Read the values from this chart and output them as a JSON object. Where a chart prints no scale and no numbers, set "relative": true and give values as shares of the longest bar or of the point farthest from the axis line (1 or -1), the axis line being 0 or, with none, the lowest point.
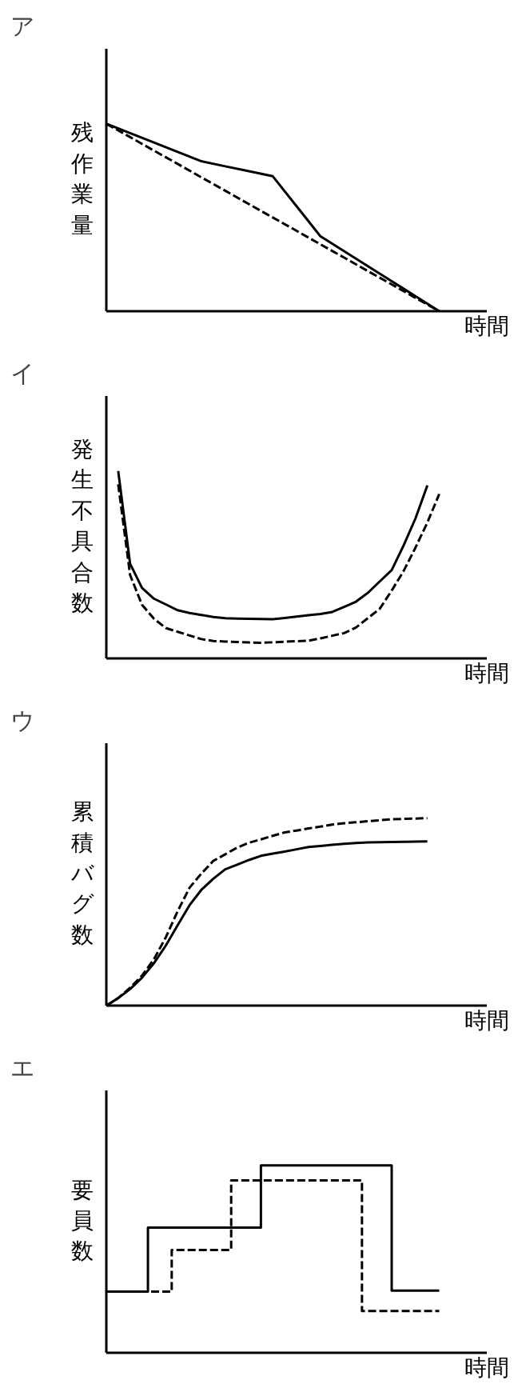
{
  "chart_data": [
    {
      "type": "line",
      "title": "ア",
      "ylabel": "残作業量",
      "xlabel": "時間",
      "relative": true,
      "categories": [
        null,
        null,
        null,
        null,
        null,
        null,
        null,
        null,
        null,
        null,
        null,
        null,
        null,
        null,
        null,
        null,
        null
      ],
      "series": [
        {
          "color": "#000000",
          "line_style": "solid",
          "values": [
            1.0,
            0.95,
            0.9,
            0.85,
            0.8,
            0.773,
            0.747,
            0.72,
            0.56,
            0.4,
            0.32,
            0.24,
            0.16,
            0.08,
            0,
            null,
            null
          ]
        },
        {
          "color": "#000000",
          "line_style": "dashed",
          "values": [
            1.0,
            0.929,
            0.857,
            0.786,
            0.714,
            0.643,
            0.571,
            0.5,
            0.429,
            0.357,
            0.286,
            0.214,
            0.143,
            0.071,
            0,
            null,
            null
          ]
        }
      ]
    },
    {
      "type": "line",
      "title": "イ",
      "ylabel": "発生不具合数",
      "xlabel": "時間",
      "relative": true,
      "categories": [
        null,
        null,
        null,
        null,
        null,
        null,
        null,
        null,
        null,
        null,
        null,
        null,
        null,
        null,
        null,
        null,
        null,
        null,
        null,
        null,
        null,
        null,
        null,
        null,
        null,
        null,
        null,
        null,
        null,
        null,
        null,
        null,
        null
      ],
      "series": [
        {
          "color": "#000000",
          "line_style": "solid",
          "values": [
            null,
            1.0,
            0.505,
            0.376,
            0.319,
            0.288,
            0.257,
            0.242,
            0.232,
            0.221,
            0.214,
            0.212,
            0.211,
            0.21,
            0.209,
            0.216,
            0.223,
            0.23,
            0.237,
            0.248,
            0.275,
            0.303,
            0.35,
            0.411,
            0.471,
            0.602,
            0.747,
            0.923,
            null,
            null,
            null,
            null,
            null
          ]
        },
        {
          "color": "#000000",
          "line_style": "dashed",
          "values": [
            null,
            0.929,
            0.445,
            0.286,
            0.212,
            0.162,
            0.142,
            0.122,
            0.103,
            0.093,
            0.09,
            0.088,
            0.085,
            0.083,
            0.086,
            0.089,
            0.092,
            0.094,
            0.107,
            0.121,
            0.135,
            0.165,
            0.215,
            0.265,
            0.362,
            0.466,
            0.591,
            0.725,
            0.877,
            null,
            null,
            null,
            null
          ]
        }
      ]
    },
    {
      "type": "line",
      "title": "ウ",
      "ylabel": "累積バグ数",
      "xlabel": "時間",
      "relative": true,
      "categories": [
        null,
        null,
        null,
        null,
        null,
        null,
        null,
        null,
        null,
        null,
        null,
        null,
        null,
        null,
        null,
        null,
        null,
        null,
        null,
        null,
        null,
        null,
        null,
        null,
        null,
        null,
        null,
        null,
        null,
        null,
        null,
        null,
        null
      ],
      "series": [
        {
          "color": "#000000",
          "line_style": "solid",
          "values": [
            0,
            0.04,
            0.088,
            0.149,
            0.226,
            0.32,
            0.429,
            0.536,
            0.618,
            0.677,
            0.727,
            0.752,
            0.777,
            0.799,
            0.811,
            0.822,
            0.834,
            0.846,
            0.852,
            0.858,
            0.863,
            0.868,
            0.871,
            0.872,
            0.873,
            0.874,
            0.875,
            0.876,
            null,
            null,
            null,
            null,
            null
          ]
        },
        {
          "color": "#000000",
          "line_style": "dashed",
          "values": [
            0,
            0.04,
            0.095,
            0.16,
            0.247,
            0.364,
            0.504,
            0.629,
            0.705,
            0.772,
            0.807,
            0.843,
            0.869,
            0.887,
            0.906,
            0.924,
            0.934,
            0.945,
            0.955,
            0.966,
            0.973,
            0.978,
            0.984,
            0.989,
            0.994,
            0.996,
            0.998,
            1.0,
            null,
            null,
            null,
            null,
            null
          ]
        }
      ]
    },
    {
      "type": "step",
      "title": "エ",
      "ylabel": "要員数",
      "xlabel": "時間",
      "relative": true,
      "categories": [
        null,
        null,
        null,
        null,
        null,
        null,
        null,
        null,
        null,
        null,
        null,
        null,
        null,
        null,
        null,
        null,
        null,
        null,
        null,
        null,
        null,
        null,
        null,
        null,
        null,
        null,
        null,
        null,
        null,
        null,
        null,
        null,
        null,
        null,
        null,
        null,
        null,
        null,
        null,
        null,
        null,
        null,
        null,
        null,
        null,
        null,
        null,
        null,
        null,
        null,
        null,
        null,
        null,
        null,
        null,
        null,
        null,
        null,
        null,
        null,
        null,
        null,
        null,
        null,
        null
      ],
      "series": [
        {
          "color": "#000000",
          "line_style": "solid",
          "values": [
            0.326,
            0.326,
            0.326,
            0.326,
            0.326,
            0.326,
            0.326,
            0.668,
            0.668,
            0.668,
            0.668,
            0.668,
            0.668,
            0.668,
            0.668,
            0.668,
            0.668,
            0.668,
            0.668,
            0.668,
            0.668,
            0.668,
            0.668,
            0.668,
            0.668,
            0.668,
            1.0,
            1.0,
            1.0,
            1.0,
            1.0,
            1.0,
            1.0,
            1.0,
            1.0,
            1.0,
            1.0,
            1.0,
            1.0,
            1.0,
            1.0,
            1.0,
            1.0,
            1.0,
            1.0,
            1.0,
            1.0,
            1.0,
            0.332,
            0.332,
            0.332,
            0.332,
            0.332,
            0.332,
            0.332,
            0.332,
            0.332,
            null,
            null,
            null,
            null,
            null,
            null,
            null,
            null
          ]
        },
        {
          "color": "#000000",
          "line_style": "dashed",
          "values": [
            0.326,
            0.326,
            0.326,
            0.326,
            0.326,
            0.326,
            0.326,
            0.326,
            0.326,
            0.326,
            0.326,
            0.549,
            0.549,
            0.549,
            0.549,
            0.549,
            0.549,
            0.549,
            0.549,
            0.549,
            0.549,
            0.92,
            0.92,
            0.92,
            0.92,
            0.92,
            0.92,
            0.92,
            0.92,
            0.92,
            0.92,
            0.92,
            0.92,
            0.92,
            0.92,
            0.92,
            0.92,
            0.92,
            0.92,
            0.92,
            0.92,
            0.92,
            0.92,
            0.223,
            0.223,
            0.223,
            0.223,
            0.223,
            0.223,
            0.223,
            0.223,
            0.223,
            0.223,
            0.223,
            0.223,
            0.223,
            0.223,
            null,
            null,
            null,
            null,
            null,
            null,
            null,
            null
          ]
        }
      ]
    }
  ]
}
